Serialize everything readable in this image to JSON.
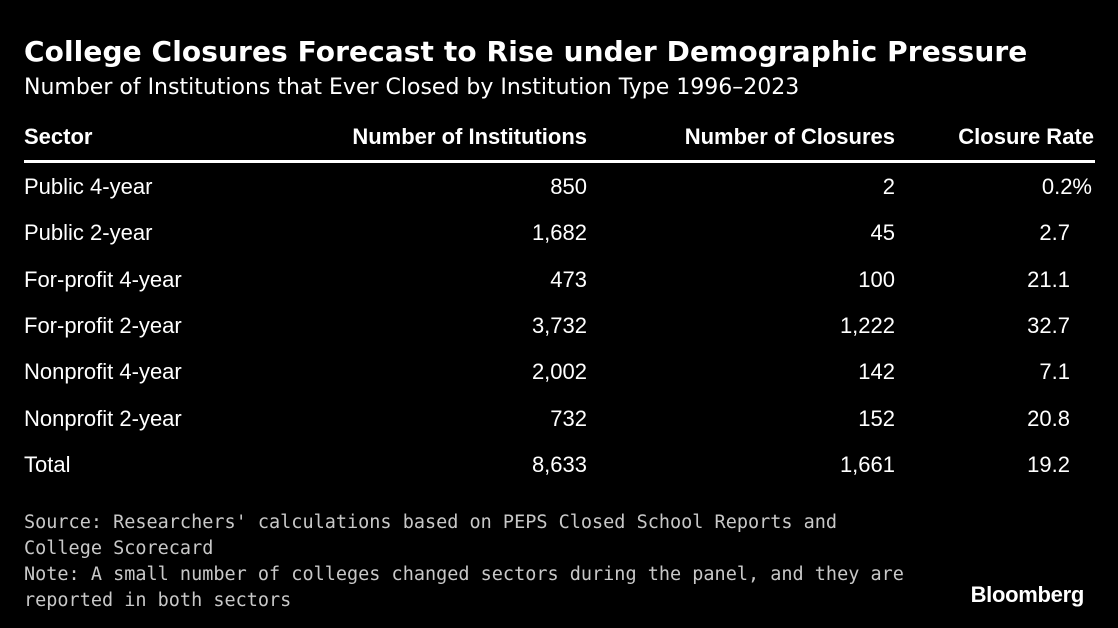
{
  "title": "College Closures Forecast to Rise under Demographic Pressure",
  "subtitle": "Number of Institutions that Ever Closed by Institution Type 1996–2023",
  "chart_data": {
    "type": "table",
    "columns": [
      "Sector",
      "Number of Institutions",
      "Number of Closures",
      "Closure Rate"
    ],
    "rows": [
      {
        "sector": "Public 4-year",
        "institutions": "850",
        "closures": "2",
        "rate": "0.2%"
      },
      {
        "sector": "Public 2-year",
        "institutions": "1,682",
        "closures": "45",
        "rate": "2.7"
      },
      {
        "sector": "For-profit 4-year",
        "institutions": "473",
        "closures": "100",
        "rate": "21.1"
      },
      {
        "sector": "For-profit 2-year",
        "institutions": "3,732",
        "closures": "1,222",
        "rate": "32.7"
      },
      {
        "sector": "Nonprofit 4-year",
        "institutions": "2,002",
        "closures": "142",
        "rate": "7.1"
      },
      {
        "sector": "Nonprofit 2-year",
        "institutions": "732",
        "closures": "152",
        "rate": "20.8"
      },
      {
        "sector": "Total",
        "institutions": "8,633",
        "closures": "1,661",
        "rate": "19.2"
      }
    ]
  },
  "footer": {
    "source_line1": "Source: Researchers' calculations based on PEPS Closed School Reports and",
    "source_line2": "College Scorecard",
    "note_line1": "Note: A small number of colleges changed sectors during the panel, and they are",
    "note_line2": "reported in both sectors"
  },
  "brand": "Bloomberg"
}
